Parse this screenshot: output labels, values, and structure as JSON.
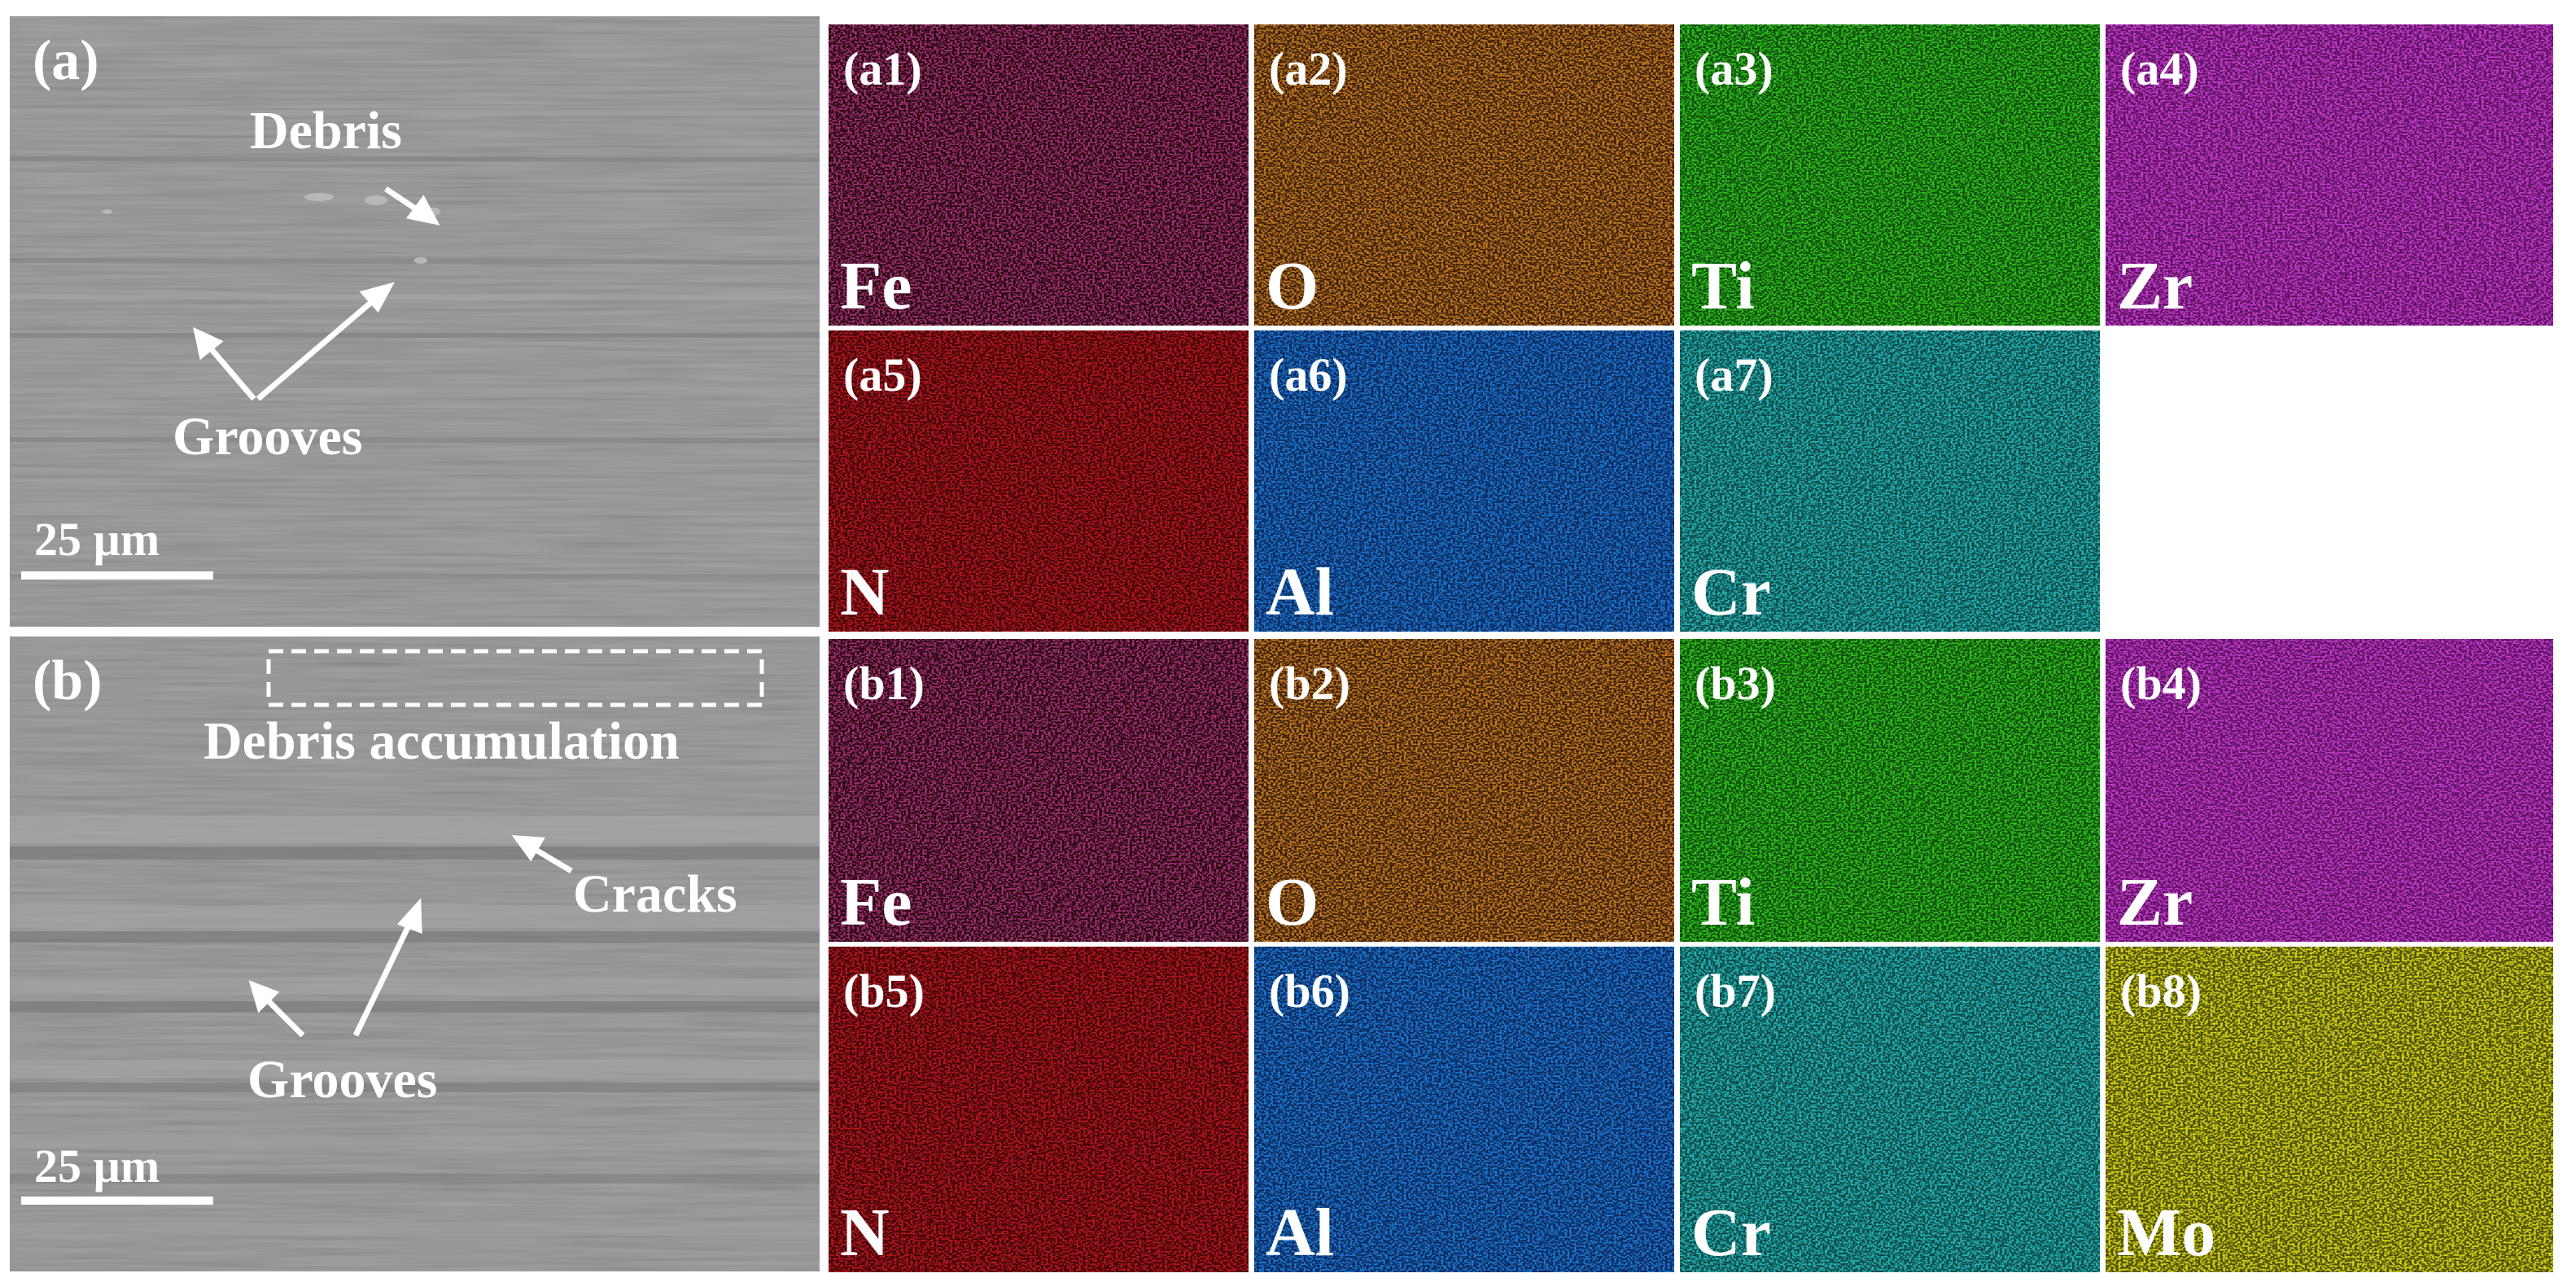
{
  "figure": {
    "panel_a": {
      "label": "(a)",
      "annotations": {
        "debris": "Debris",
        "grooves": "Grooves"
      },
      "scale_bar": "25 µm",
      "maps": [
        {
          "id": "a1",
          "label": "(a1)",
          "element": "Fe",
          "color": "#a0306e",
          "bg": "#24060f"
        },
        {
          "id": "a2",
          "label": "(a2)",
          "element": "O",
          "color": "#c37a25",
          "bg": "#3a1d06"
        },
        {
          "id": "a3",
          "label": "(a3)",
          "element": "Ti",
          "color": "#2fbf1f",
          "bg": "#0d4a09"
        },
        {
          "id": "a4",
          "label": "(a4)",
          "element": "Zr",
          "color": "#c23ac8",
          "bg": "#5b1160"
        },
        {
          "id": "a5",
          "label": "(a5)",
          "element": "N",
          "color": "#b3191f",
          "bg": "#3f0407"
        },
        {
          "id": "a6",
          "label": "(a6)",
          "element": "Al",
          "color": "#1e74d0",
          "bg": "#09285a"
        },
        {
          "id": "a7",
          "label": "(a7)",
          "element": "Cr",
          "color": "#27b0b0",
          "bg": "#0a4848"
        }
      ]
    },
    "panel_b": {
      "label": "(b)",
      "annotations": {
        "debris_accumulation": "Debris accumulation",
        "cracks": "Cracks",
        "grooves": "Grooves"
      },
      "scale_bar": "25 µm",
      "maps": [
        {
          "id": "b1",
          "label": "(b1)",
          "element": "Fe",
          "color": "#a0306e",
          "bg": "#24060f"
        },
        {
          "id": "b2",
          "label": "(b2)",
          "element": "O",
          "color": "#c37a25",
          "bg": "#3a1d06"
        },
        {
          "id": "b3",
          "label": "(b3)",
          "element": "Ti",
          "color": "#2fbf1f",
          "bg": "#0d4a09"
        },
        {
          "id": "b4",
          "label": "(b4)",
          "element": "Zr",
          "color": "#c23ac8",
          "bg": "#5b1160"
        },
        {
          "id": "b5",
          "label": "(b5)",
          "element": "N",
          "color": "#b3191f",
          "bg": "#3f0407"
        },
        {
          "id": "b6",
          "label": "(b6)",
          "element": "Al",
          "color": "#1e74d0",
          "bg": "#09285a"
        },
        {
          "id": "b7",
          "label": "(b7)",
          "element": "Cr",
          "color": "#27b0b0",
          "bg": "#0a4848"
        },
        {
          "id": "b8",
          "label": "(b8)",
          "element": "Mo",
          "color": "#cfcf1a",
          "bg": "#4d4d06"
        }
      ]
    }
  }
}
